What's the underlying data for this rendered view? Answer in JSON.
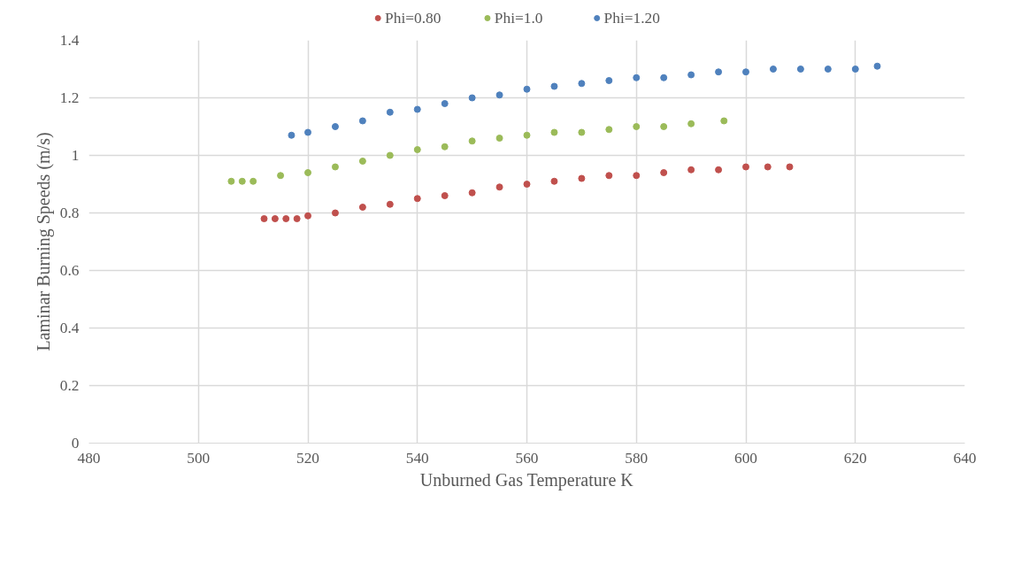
{
  "chart_data": {
    "type": "scatter",
    "xlabel": "Unburned Gas Temperature K",
    "ylabel": "Laminar Burning Speeds (m/s)",
    "xlim": [
      480,
      640
    ],
    "xticks": [
      480,
      500,
      520,
      540,
      560,
      580,
      600,
      620,
      640
    ],
    "ylim": [
      0,
      1.4
    ],
    "yticks": [
      0,
      0.2,
      0.4,
      0.6,
      0.8,
      1,
      1.2,
      1.4
    ],
    "grid": true,
    "legend": "top",
    "marker": "circle",
    "series": [
      {
        "name": "Phi=0.80",
        "color": "#c0504d",
        "x": [
          512,
          514,
          516,
          518,
          520,
          525,
          530,
          535,
          540,
          545,
          550,
          555,
          560,
          565,
          570,
          575,
          580,
          585,
          590,
          595,
          600,
          604,
          608
        ],
        "values": [
          0.78,
          0.78,
          0.78,
          0.78,
          0.79,
          0.8,
          0.82,
          0.83,
          0.85,
          0.86,
          0.87,
          0.89,
          0.9,
          0.91,
          0.92,
          0.93,
          0.93,
          0.94,
          0.95,
          0.95,
          0.96,
          0.96,
          0.96
        ]
      },
      {
        "name": "Phi=1.0",
        "color": "#9bbb59",
        "x": [
          506,
          508,
          510,
          515,
          520,
          525,
          530,
          535,
          540,
          545,
          550,
          555,
          560,
          565,
          570,
          575,
          580,
          585,
          590,
          596
        ],
        "values": [
          0.91,
          0.91,
          0.91,
          0.93,
          0.94,
          0.96,
          0.98,
          1.0,
          1.02,
          1.03,
          1.05,
          1.06,
          1.07,
          1.08,
          1.08,
          1.09,
          1.1,
          1.1,
          1.11,
          1.12
        ]
      },
      {
        "name": "Phi=1.20",
        "color": "#4f81bd",
        "x": [
          517,
          520,
          525,
          530,
          535,
          540,
          545,
          550,
          555,
          560,
          565,
          570,
          575,
          580,
          585,
          590,
          595,
          600,
          605,
          610,
          615,
          620,
          624
        ],
        "values": [
          1.07,
          1.08,
          1.1,
          1.12,
          1.15,
          1.16,
          1.18,
          1.2,
          1.21,
          1.23,
          1.24,
          1.25,
          1.26,
          1.27,
          1.27,
          1.28,
          1.29,
          1.29,
          1.3,
          1.3,
          1.3,
          1.3,
          1.31
        ]
      }
    ]
  }
}
